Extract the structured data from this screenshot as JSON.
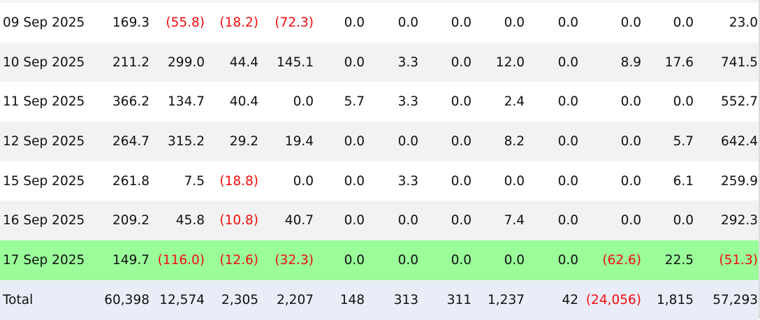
{
  "table": {
    "rows": [
      {
        "date": "09 Sep 2025",
        "values": [
          "169.3",
          "(55.8)",
          "(18.2)",
          "(72.3)",
          "0.0",
          "0.0",
          "0.0",
          "0.0",
          "0.0",
          "0.0",
          "0.0",
          "23.0"
        ]
      },
      {
        "date": "10 Sep 2025",
        "values": [
          "211.2",
          "299.0",
          "44.4",
          "145.1",
          "0.0",
          "3.3",
          "0.0",
          "12.0",
          "0.0",
          "8.9",
          "17.6",
          "741.5"
        ]
      },
      {
        "date": "11 Sep 2025",
        "values": [
          "366.2",
          "134.7",
          "40.4",
          "0.0",
          "5.7",
          "3.3",
          "0.0",
          "2.4",
          "0.0",
          "0.0",
          "0.0",
          "552.7"
        ]
      },
      {
        "date": "12 Sep 2025",
        "values": [
          "264.7",
          "315.2",
          "29.2",
          "19.4",
          "0.0",
          "0.0",
          "0.0",
          "8.2",
          "0.0",
          "0.0",
          "5.7",
          "642.4"
        ]
      },
      {
        "date": "15 Sep 2025",
        "values": [
          "261.8",
          "7.5",
          "(18.8)",
          "0.0",
          "0.0",
          "3.3",
          "0.0",
          "0.0",
          "0.0",
          "0.0",
          "6.1",
          "259.9"
        ]
      },
      {
        "date": "16 Sep 2025",
        "values": [
          "209.2",
          "45.8",
          "(10.8)",
          "40.7",
          "0.0",
          "0.0",
          "0.0",
          "7.4",
          "0.0",
          "0.0",
          "0.0",
          "292.3"
        ]
      },
      {
        "date": "17 Sep 2025",
        "values": [
          "149.7",
          "(116.0)",
          "(12.6)",
          "(32.3)",
          "0.0",
          "0.0",
          "0.0",
          "0.0",
          "0.0",
          "(62.6)",
          "22.5",
          "(51.3)"
        ],
        "highlighted": true
      }
    ],
    "total": {
      "label": "Total",
      "values": [
        "60,398",
        "12,574",
        "2,305",
        "2,207",
        "148",
        "313",
        "311",
        "1,237",
        "42",
        "(24,056)",
        "1,815",
        "57,293"
      ]
    }
  },
  "colors": {
    "negative": "#f20d0d",
    "highlight_row": "#9afd9a",
    "alt_row": "#f2f2f2",
    "total_row": "#e9edf7"
  }
}
